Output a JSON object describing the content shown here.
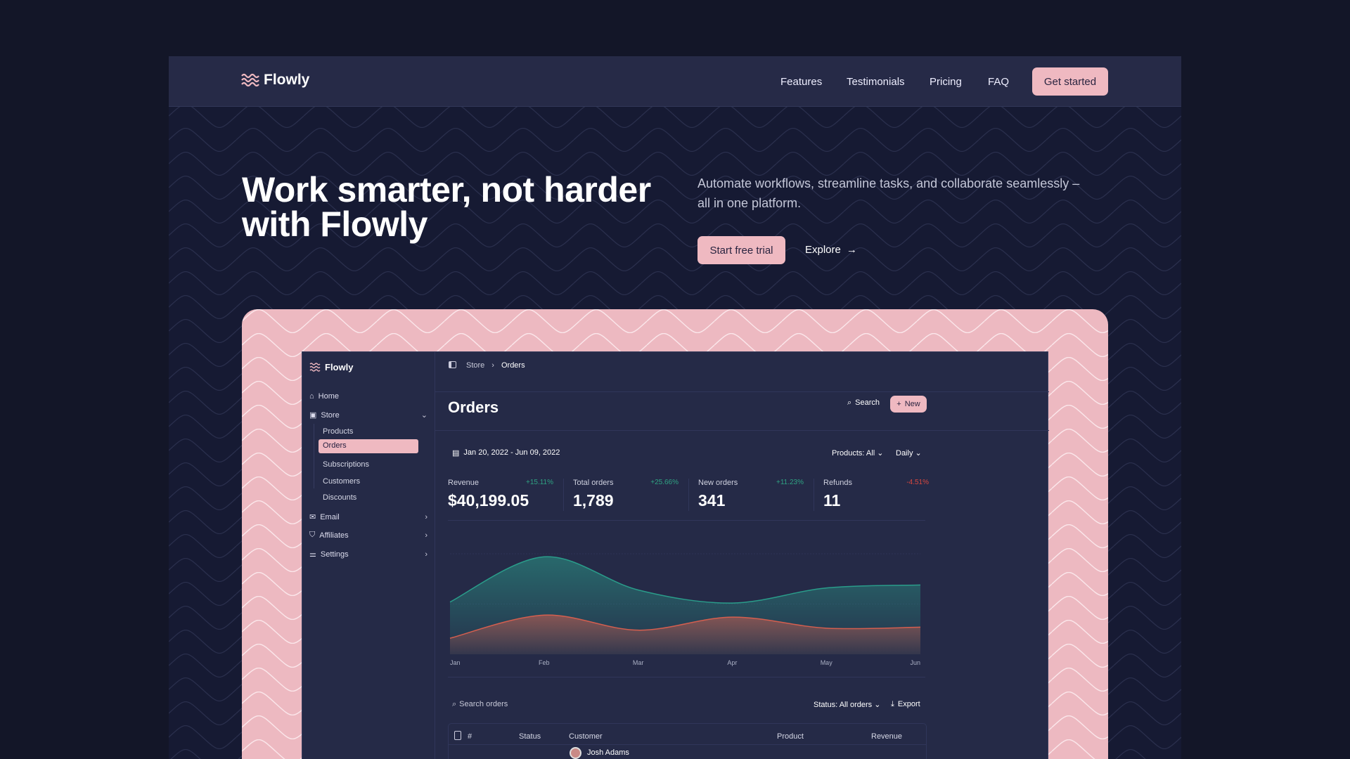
{
  "brand": "Flowly",
  "nav": {
    "links": [
      "Features",
      "Testimonials",
      "Pricing",
      "FAQ"
    ],
    "cta": "Get started"
  },
  "hero": {
    "title_line1": "Work smarter, not harder",
    "title_line2": "with Flowly",
    "subtitle_line1": "Automate workflows, streamline tasks, and collaborate seamlessly –",
    "subtitle_line2": "all in one platform.",
    "primary": "Start free trial",
    "secondary": "Explore"
  },
  "colors": {
    "accent": "#efb9c1",
    "background": "#131628",
    "panel": "#252a47",
    "positive": "#2fa383",
    "negative": "#d9473f"
  },
  "sidebar": {
    "brand": "Flowly",
    "items": [
      {
        "label": "Home",
        "icon": "home-icon"
      },
      {
        "label": "Store",
        "icon": "store-icon"
      },
      {
        "label": "Email",
        "icon": "mail-icon"
      },
      {
        "label": "Affiliates",
        "icon": "handshake-icon"
      },
      {
        "label": "Settings",
        "icon": "sliders-icon"
      }
    ],
    "store_sub": [
      "Products",
      "Orders",
      "Subscriptions",
      "Customers",
      "Discounts"
    ],
    "active": "Orders"
  },
  "breadcrumb": [
    "Store",
    "Orders"
  ],
  "page": {
    "title": "Orders",
    "search": "Search",
    "new": "New"
  },
  "filters": {
    "date_range": "Jan 20, 2022 - Jun 09, 2022",
    "products": "Products: All",
    "interval": "Daily"
  },
  "stats": [
    {
      "label": "Revenue",
      "value": "$40,199.05",
      "change": "+15.11%",
      "trend": "up"
    },
    {
      "label": "Total orders",
      "value": "1,789",
      "change": "+25.66%",
      "trend": "up"
    },
    {
      "label": "New orders",
      "value": "341",
      "change": "+11.23%",
      "trend": "up"
    },
    {
      "label": "Refunds",
      "value": "11",
      "change": "-4.51%",
      "trend": "down"
    }
  ],
  "chart_data": {
    "type": "area",
    "categories": [
      "Jan",
      "Feb",
      "Mar",
      "Apr",
      "May",
      "Jun"
    ],
    "series": [
      {
        "color": "#2a9c8a",
        "values": [
          52,
          97,
          64,
          51,
          66,
          69
        ]
      },
      {
        "color": "#d45f4f",
        "values": [
          16,
          39,
          24,
          37,
          26,
          27
        ]
      }
    ],
    "ylim": [
      0,
      100
    ],
    "grid": true
  },
  "table": {
    "search_placeholder": "Search orders",
    "status_filter": "Status: All orders",
    "export": "Export",
    "columns": [
      "#",
      "Status",
      "Customer",
      "Product",
      "Revenue"
    ],
    "rows": [
      {
        "customer": "Josh Adams"
      }
    ]
  }
}
